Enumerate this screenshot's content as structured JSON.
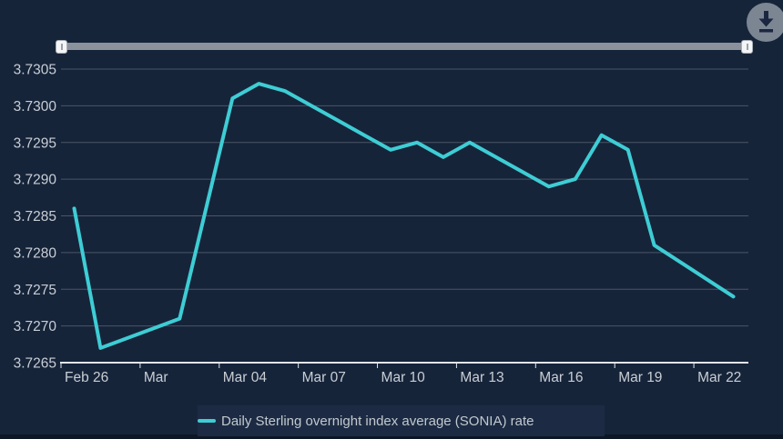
{
  "ui": {
    "download_button": {
      "icon": "download-arrow"
    },
    "slider": {
      "left_handle_pct": 0,
      "right_handle_pct": 100
    }
  },
  "colors": {
    "page_background": "#0C1725",
    "chart_background": "#16243A",
    "gridline": "#4A5566",
    "axis_line": "#E2E6EA",
    "axis_label": "#C9CED5",
    "series_teal": "#3ECDD4",
    "slider_track": "#8B929C",
    "slider_handle": "#F4F5F7",
    "download_button_bg": "#7C8693",
    "download_icon": "#1B2740",
    "legend_band": "#1C2B43",
    "legend_text": "#C2C8CF"
  },
  "chart_data": {
    "type": "line",
    "title": "",
    "xlabel": "",
    "ylabel": "",
    "grid": true,
    "legend_position": "bottom",
    "x": [
      "Feb 26",
      "Feb 27",
      "Mar 02",
      "Mar 03",
      "Mar 04",
      "Mar 05",
      "Mar 06",
      "Mar 09",
      "Mar 10",
      "Mar 11",
      "Mar 12",
      "Mar 13",
      "Mar 16",
      "Mar 17",
      "Mar 18",
      "Mar 19",
      "Mar 20",
      "Mar 23"
    ],
    "series": [
      {
        "name": "Daily Sterling overnight index average (SONIA) rate",
        "color": "#3ECDD4",
        "day_offsets": [
          0,
          1,
          4,
          5,
          6,
          7,
          8,
          11,
          12,
          13,
          14,
          15,
          18,
          19,
          20,
          21,
          22,
          25
        ],
        "values": [
          3.7286,
          3.7267,
          3.7271,
          3.7286,
          3.7301,
          3.7303,
          3.7302,
          3.7296,
          3.7294,
          3.7295,
          3.7293,
          3.7295,
          3.7289,
          3.729,
          3.7296,
          3.7294,
          3.7281,
          3.7274
        ]
      }
    ],
    "x_ticks": {
      "labels": [
        "Feb 26",
        "Mar",
        "Mar 04",
        "Mar 07",
        "Mar 10",
        "Mar 13",
        "Mar 16",
        "Mar 19",
        "Mar 22"
      ],
      "day_offsets": [
        0,
        3,
        6,
        9,
        12,
        15,
        18,
        21,
        24
      ],
      "days_span": 26
    },
    "y_ticks": {
      "labels": [
        "3.7305",
        "3.7300",
        "3.7295",
        "3.7290",
        "3.7285",
        "3.7280",
        "3.7275",
        "3.7270",
        "3.7265"
      ]
    },
    "ylim": [
      3.7265,
      3.7305
    ]
  }
}
